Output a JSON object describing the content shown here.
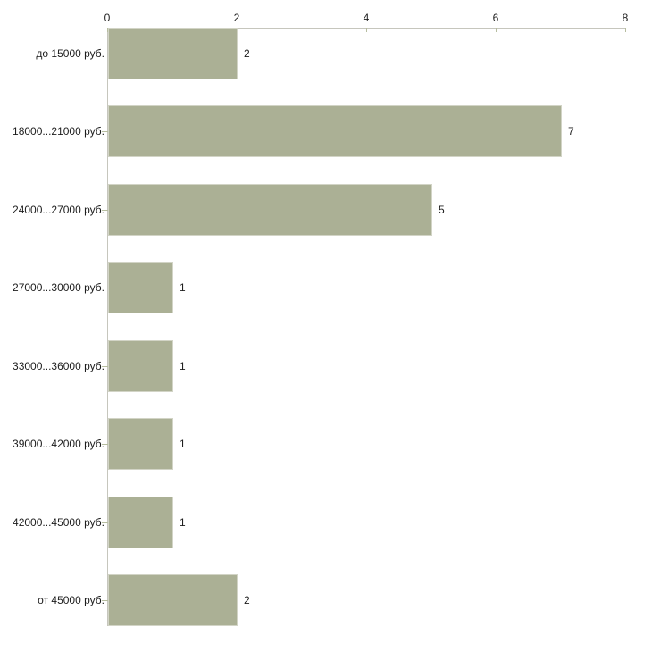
{
  "chart_data": {
    "type": "bar",
    "orientation": "horizontal",
    "title": "",
    "xlabel": "",
    "ylabel": "",
    "categories": [
      "до 15000 руб.",
      "18000...21000 руб.",
      "24000...27000 руб.",
      "27000...30000 руб.",
      "33000...36000 руб.",
      "39000...42000 руб.",
      "42000...45000 руб.",
      "от 45000 руб."
    ],
    "values": [
      2,
      7,
      5,
      1,
      1,
      1,
      1,
      2
    ],
    "value_labels": [
      "2",
      "7",
      "5",
      "1",
      "1",
      "1",
      "1",
      "2"
    ],
    "xlim": [
      0,
      8
    ],
    "x_ticks": [
      0,
      2,
      4,
      6,
      8
    ],
    "x_tick_labels": [
      "0",
      "2",
      "4",
      "6",
      "8"
    ],
    "axis_position": "top",
    "grid": false,
    "legend": "none",
    "style": {
      "bar_color": "#abb095",
      "bar_border_color": "#d2d4c6",
      "axis_color": "#c6c6bd",
      "tick_color": "#b6bd9f",
      "text_color": "#1c1c1c",
      "background": "#ffffff"
    }
  }
}
